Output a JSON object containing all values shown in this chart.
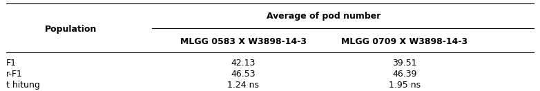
{
  "col_header_top": "Average of pod number",
  "col_header_sub": [
    "MLGG 0583 X W3898-14-3",
    "MLGG 0709 X W3898-14-3"
  ],
  "row_header": "Population",
  "rows": [
    "F1",
    "r-F1",
    "t hitung"
  ],
  "col1_values": [
    "42.13",
    "46.53",
    "1.24 ns"
  ],
  "col2_values": [
    "39.51",
    "46.39",
    "1.95 ns"
  ],
  "bg_color": "#ffffff",
  "text_color": "#000000",
  "header_fontsize": 9,
  "data_fontsize": 9,
  "fig_width": 7.82,
  "fig_height": 1.32
}
